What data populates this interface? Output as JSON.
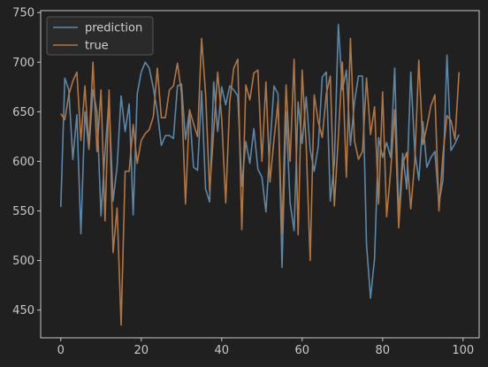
{
  "chart_data": {
    "type": "line",
    "title": "",
    "xlabel": "",
    "ylabel": "",
    "xlim": [
      -5,
      104
    ],
    "ylim": [
      422,
      752
    ],
    "x_ticks": [
      0,
      20,
      40,
      60,
      80,
      100
    ],
    "y_ticks": [
      450,
      500,
      550,
      600,
      650,
      700,
      750
    ],
    "grid": false,
    "legend": "upper left",
    "x": [
      0,
      1,
      2,
      3,
      4,
      5,
      6,
      7,
      8,
      9,
      10,
      11,
      12,
      13,
      14,
      15,
      16,
      17,
      18,
      19,
      20,
      21,
      22,
      23,
      24,
      25,
      26,
      27,
      28,
      29,
      30,
      31,
      32,
      33,
      34,
      35,
      36,
      37,
      38,
      39,
      40,
      41,
      42,
      43,
      44,
      45,
      46,
      47,
      48,
      49,
      50,
      51,
      52,
      53,
      54,
      55,
      56,
      57,
      58,
      59,
      60,
      61,
      62,
      63,
      64,
      65,
      66,
      67,
      68,
      69,
      70,
      71,
      72,
      73,
      74,
      75,
      76,
      77,
      78,
      79,
      80,
      81,
      82,
      83,
      84,
      85,
      86,
      87,
      88,
      89,
      90,
      91,
      92,
      93,
      94,
      95,
      96,
      97,
      98,
      99
    ],
    "series": [
      {
        "name": "prediction",
        "color": "#5b87a8",
        "values": [
          554,
          684,
          672,
          602,
          647,
          527,
          650,
          612,
          672,
          650,
          545,
          610,
          663,
          560,
          595,
          666,
          630,
          658,
          546,
          668,
          690,
          700,
          694,
          674,
          650,
          616,
          626,
          626,
          623,
          676,
          678,
          622,
          651,
          594,
          591,
          671,
          572,
          559,
          680,
          630,
          675,
          657,
          676,
          672,
          666,
          575,
          620,
          598,
          633,
          592,
          584,
          549,
          615,
          676,
          668,
          493,
          650,
          558,
          530,
          660,
          618,
          665,
          612,
          590,
          615,
          685,
          690,
          560,
          598,
          738,
          672,
          692,
          616,
          660,
          686,
          686,
          516,
          462,
          502,
          624,
          604,
          619,
          604,
          694,
          546,
          608,
          572,
          690,
          610,
          581,
          640,
          594,
          604,
          610,
          558,
          581,
          707,
          611,
          618,
          627
        ]
      },
      {
        "name": "true",
        "color": "#b27642",
        "values": [
          648,
          642,
          667,
          681,
          690,
          621,
          676,
          614,
          700,
          610,
          672,
          540,
          672,
          508,
          553,
          435,
          590,
          590,
          637,
          598,
          621,
          628,
          632,
          645,
          694,
          644,
          644,
          672,
          676,
          699,
          669,
          557,
          652,
          638,
          625,
          724,
          668,
          570,
          630,
          690,
          643,
          558,
          660,
          694,
          703,
          531,
          677,
          662,
          689,
          692,
          600,
          680,
          579,
          622,
          660,
          527,
          677,
          600,
          703,
          526,
          692,
          617,
          500,
          667,
          640,
          624,
          668,
          686,
          555,
          625,
          700,
          584,
          724,
          621,
          602,
          610,
          684,
          627,
          655,
          557,
          670,
          544,
          590,
          652,
          533,
          598,
          609,
          552,
          600,
          702,
          617,
          635,
          656,
          667,
          550,
          607,
          646,
          641,
          622,
          690
        ]
      }
    ]
  }
}
